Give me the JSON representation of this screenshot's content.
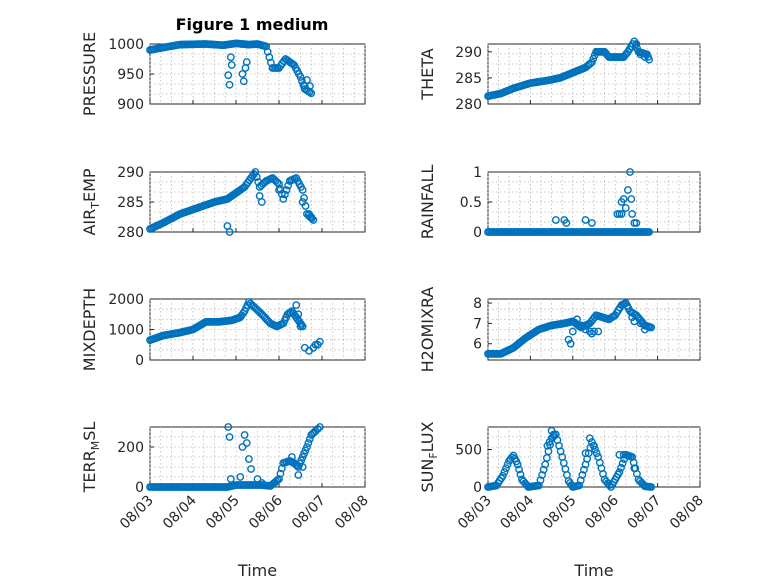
{
  "figure": {
    "title": "Figure 1 medium"
  },
  "chart_data": [
    {
      "type": "scatter",
      "id": "pressure",
      "ylabel": "PRESSURE",
      "ylim": [
        900,
        1000
      ],
      "yticks": [
        "900",
        "950",
        "1000"
      ],
      "xtick_labels": false,
      "marker_color": "#0072bd",
      "series": [
        {
          "segments": [
            [
              3.0,
              990
            ],
            [
              3.3,
              994
            ],
            [
              3.7,
              999
            ],
            [
              4.3,
              1000
            ],
            [
              4.7,
              998
            ],
            [
              5.0,
              1001
            ],
            [
              5.3,
              999
            ],
            [
              5.5,
              1000
            ],
            [
              5.7,
              996
            ],
            [
              5.85,
              960
            ],
            [
              6.0,
              960
            ],
            [
              6.15,
              975
            ],
            [
              6.25,
              970
            ],
            [
              6.35,
              965
            ],
            [
              6.5,
              945
            ],
            [
              6.6,
              925
            ],
            [
              6.75,
              918
            ]
          ]
        },
        {
          "points": [
            [
              4.82,
              948
            ],
            [
              4.85,
              932
            ],
            [
              4.88,
              978
            ],
            [
              4.9,
              965
            ],
            [
              5.15,
              950
            ],
            [
              5.18,
              938
            ],
            [
              5.22,
              960
            ],
            [
              5.25,
              970
            ],
            [
              6.6,
              930
            ],
            [
              6.65,
              940
            ],
            [
              6.72,
              930
            ]
          ]
        }
      ]
    },
    {
      "type": "scatter",
      "id": "theta",
      "ylabel": "THETA",
      "ylim": [
        280,
        291.5
      ],
      "yticks": [
        "280",
        "285",
        "290"
      ],
      "xtick_labels": false,
      "marker_color": "#0072bd",
      "series": [
        {
          "segments": [
            [
              3.0,
              281.5
            ],
            [
              3.3,
              282
            ],
            [
              3.6,
              283
            ],
            [
              4.0,
              284
            ],
            [
              4.4,
              284.5
            ],
            [
              4.7,
              285
            ],
            [
              5.0,
              286
            ],
            [
              5.3,
              287
            ],
            [
              5.45,
              288
            ],
            [
              5.55,
              290
            ],
            [
              5.75,
              290
            ],
            [
              5.85,
              289
            ],
            [
              6.2,
              289
            ],
            [
              6.3,
              290
            ],
            [
              6.45,
              292
            ],
            [
              6.55,
              290
            ],
            [
              6.75,
              289.5
            ],
            [
              6.8,
              288.5
            ]
          ]
        },
        {
          "points": [
            [
              6.4,
              291
            ],
            [
              6.5,
              291.5
            ],
            [
              6.6,
              289.5
            ],
            [
              6.7,
              289
            ]
          ]
        }
      ]
    },
    {
      "type": "scatter",
      "id": "air-temp",
      "ylabel": "AIR_TEMP",
      "ylim": [
        280,
        290
      ],
      "yticks": [
        "280",
        "285",
        "290"
      ],
      "xtick_labels": false,
      "marker_color": "#0072bd",
      "series": [
        {
          "segments": [
            [
              3.0,
              280.5
            ],
            [
              3.3,
              281.5
            ],
            [
              3.7,
              283
            ],
            [
              4.1,
              284
            ],
            [
              4.5,
              285
            ],
            [
              4.8,
              285.5
            ],
            [
              5.0,
              286.5
            ],
            [
              5.2,
              287.5
            ],
            [
              5.35,
              289
            ],
            [
              5.45,
              290
            ],
            [
              5.55,
              287.5
            ],
            [
              5.7,
              288.5
            ],
            [
              5.85,
              289
            ],
            [
              6.0,
              288
            ],
            [
              6.1,
              285.5
            ],
            [
              6.25,
              288.5
            ],
            [
              6.4,
              289
            ],
            [
              6.55,
              287
            ],
            [
              6.65,
              283
            ],
            [
              6.8,
              282
            ]
          ]
        },
        {
          "points": [
            [
              4.8,
              281
            ],
            [
              4.85,
              280
            ],
            [
              5.55,
              286
            ],
            [
              5.6,
              285
            ],
            [
              6.0,
              287
            ],
            [
              6.55,
              285
            ],
            [
              6.7,
              283
            ],
            [
              6.75,
              282.5
            ]
          ]
        }
      ]
    },
    {
      "type": "scatter",
      "id": "rainfall",
      "ylabel": "RAINFALL",
      "ylim": [
        0,
        1
      ],
      "yticks": [
        "0",
        "0.5",
        "1"
      ],
      "xtick_labels": false,
      "marker_color": "#0072bd",
      "series": [
        {
          "segments": [
            [
              3.0,
              0
            ],
            [
              6.8,
              0
            ]
          ]
        },
        {
          "points": [
            [
              4.6,
              0.2
            ],
            [
              4.8,
              0.2
            ],
            [
              4.85,
              0.15
            ],
            [
              5.3,
              0.2
            ],
            [
              5.45,
              0.15
            ],
            [
              6.05,
              0.3
            ],
            [
              6.1,
              0.3
            ],
            [
              6.15,
              0.3
            ],
            [
              6.15,
              0.5
            ],
            [
              6.2,
              0.55
            ],
            [
              6.25,
              0.4
            ],
            [
              6.3,
              0.7
            ],
            [
              6.35,
              1.0
            ],
            [
              6.38,
              0.55
            ],
            [
              6.4,
              0.3
            ],
            [
              6.45,
              0.15
            ],
            [
              6.5,
              0.15
            ],
            [
              6.4,
              0.0
            ]
          ]
        }
      ]
    },
    {
      "type": "scatter",
      "id": "mixdepth",
      "ylabel": "MIXDEPTH",
      "ylim": [
        0,
        2000
      ],
      "yticks": [
        "0",
        "1000",
        "2000"
      ],
      "xtick_labels": false,
      "marker_color": "#0072bd",
      "series": [
        {
          "segments": [
            [
              3.0,
              650
            ],
            [
              3.3,
              800
            ],
            [
              3.7,
              900
            ],
            [
              4.0,
              1000
            ],
            [
              4.3,
              1250
            ],
            [
              4.6,
              1250
            ],
            [
              4.9,
              1300
            ],
            [
              5.1,
              1400
            ],
            [
              5.2,
              1600
            ],
            [
              5.3,
              1900
            ],
            [
              5.45,
              1700
            ],
            [
              5.6,
              1500
            ],
            [
              5.8,
              1200
            ],
            [
              5.95,
              1100
            ],
            [
              6.1,
              1200
            ],
            [
              6.2,
              1500
            ],
            [
              6.3,
              1600
            ],
            [
              6.4,
              1400
            ],
            [
              6.5,
              1200
            ],
            [
              6.55,
              1100
            ]
          ]
        },
        {
          "points": [
            [
              6.4,
              1800
            ],
            [
              6.45,
              1500
            ],
            [
              6.5,
              1100
            ],
            [
              6.6,
              400
            ],
            [
              6.7,
              300
            ],
            [
              6.8,
              400
            ],
            [
              6.85,
              500
            ],
            [
              6.9,
              500
            ],
            [
              6.95,
              600
            ]
          ]
        }
      ]
    },
    {
      "type": "scatter",
      "id": "h2omixra",
      "ylabel": "H2OMIXRA",
      "ylim": [
        5.2,
        8.2
      ],
      "yticks": [
        "6",
        "7",
        "8"
      ],
      "xtick_labels": false,
      "marker_color": "#0072bd",
      "series": [
        {
          "segments": [
            [
              3.0,
              5.5
            ],
            [
              3.3,
              5.5
            ],
            [
              3.6,
              5.8
            ],
            [
              3.9,
              6.3
            ],
            [
              4.2,
              6.7
            ],
            [
              4.5,
              6.9
            ],
            [
              4.8,
              7.0
            ],
            [
              5.0,
              7.1
            ],
            [
              5.2,
              6.8
            ],
            [
              5.4,
              7.0
            ],
            [
              5.55,
              7.4
            ],
            [
              5.7,
              7.3
            ],
            [
              5.85,
              7.2
            ],
            [
              6.0,
              7.4
            ],
            [
              6.15,
              7.9
            ],
            [
              6.25,
              8.0
            ],
            [
              6.35,
              7.6
            ],
            [
              6.5,
              7.4
            ],
            [
              6.7,
              6.9
            ],
            [
              6.85,
              6.8
            ]
          ]
        },
        {
          "points": [
            [
              4.9,
              6.2
            ],
            [
              4.95,
              6.0
            ],
            [
              5.0,
              6.6
            ],
            [
              5.1,
              7.2
            ],
            [
              5.2,
              6.9
            ],
            [
              5.3,
              6.7
            ],
            [
              5.4,
              6.6
            ],
            [
              5.45,
              6.5
            ],
            [
              5.5,
              6.6
            ],
            [
              5.6,
              6.6
            ],
            [
              6.4,
              7.3
            ],
            [
              6.45,
              7.1
            ],
            [
              6.6,
              7.0
            ],
            [
              6.7,
              6.7
            ],
            [
              6.8,
              6.8
            ]
          ]
        }
      ]
    },
    {
      "type": "scatter",
      "id": "terr-msl",
      "ylabel": "TERR_MSL",
      "ylim": [
        0,
        300
      ],
      "yticks": [
        "0",
        "200"
      ],
      "xtick_labels": true,
      "xlabel": "Time",
      "marker_color": "#0072bd",
      "series": [
        {
          "segments": [
            [
              3.0,
              0
            ],
            [
              4.8,
              0
            ],
            [
              4.9,
              5
            ],
            [
              5.0,
              10
            ],
            [
              5.6,
              10
            ],
            [
              5.8,
              5
            ],
            [
              6.0,
              40
            ],
            [
              6.1,
              120
            ],
            [
              6.25,
              130
            ],
            [
              6.35,
              120
            ],
            [
              6.45,
              100
            ],
            [
              6.55,
              150
            ],
            [
              6.65,
              200
            ],
            [
              6.75,
              260
            ],
            [
              6.85,
              280
            ]
          ]
        },
        {
          "points": [
            [
              4.82,
              300
            ],
            [
              4.85,
              250
            ],
            [
              4.88,
              40
            ],
            [
              5.1,
              50
            ],
            [
              5.15,
              200
            ],
            [
              5.2,
              260
            ],
            [
              5.25,
              220
            ],
            [
              5.3,
              140
            ],
            [
              5.35,
              90
            ],
            [
              5.5,
              40
            ],
            [
              5.6,
              20
            ],
            [
              6.3,
              150
            ],
            [
              6.45,
              60
            ],
            [
              6.55,
              100
            ],
            [
              6.9,
              290
            ],
            [
              6.95,
              300
            ]
          ]
        }
      ]
    },
    {
      "type": "scatter",
      "id": "sun-flux",
      "ylabel": "SUN_FLUX",
      "ylim": [
        0,
        800
      ],
      "yticks": [
        "0",
        "500"
      ],
      "xtick_labels": true,
      "xlabel": "Time",
      "marker_color": "#0072bd",
      "series": [
        {
          "segments": [
            [
              3.0,
              0
            ],
            [
              3.2,
              20
            ],
            [
              3.35,
              150
            ],
            [
              3.5,
              350
            ],
            [
              3.6,
              420
            ],
            [
              3.7,
              300
            ],
            [
              3.8,
              100
            ],
            [
              3.95,
              0
            ],
            [
              4.2,
              20
            ],
            [
              4.35,
              300
            ],
            [
              4.5,
              650
            ],
            [
              4.6,
              700
            ],
            [
              4.75,
              400
            ],
            [
              4.9,
              80
            ],
            [
              5.0,
              0
            ],
            [
              5.15,
              20
            ],
            [
              5.3,
              300
            ],
            [
              5.45,
              600
            ],
            [
              5.6,
              400
            ],
            [
              5.75,
              100
            ],
            [
              5.9,
              0
            ],
            [
              6.1,
              200
            ],
            [
              6.25,
              430
            ],
            [
              6.4,
              400
            ],
            [
              6.55,
              100
            ],
            [
              6.7,
              10
            ],
            [
              6.85,
              0
            ]
          ]
        },
        {
          "points": [
            [
              4.4,
              550
            ],
            [
              4.45,
              600
            ],
            [
              4.5,
              750
            ],
            [
              4.55,
              700
            ],
            [
              5.3,
              450
            ],
            [
              5.4,
              650
            ],
            [
              5.5,
              550
            ],
            [
              6.1,
              430
            ],
            [
              6.2,
              430
            ],
            [
              6.3,
              420
            ],
            [
              6.45,
              250
            ]
          ]
        }
      ]
    }
  ],
  "x_axis": {
    "ticks": [
      3,
      4,
      5,
      6,
      7,
      8
    ],
    "tick_labels": [
      "08/03",
      "08/04",
      "08/05",
      "08/06",
      "08/07",
      "08/08"
    ],
    "xlim": [
      3,
      8
    ]
  }
}
